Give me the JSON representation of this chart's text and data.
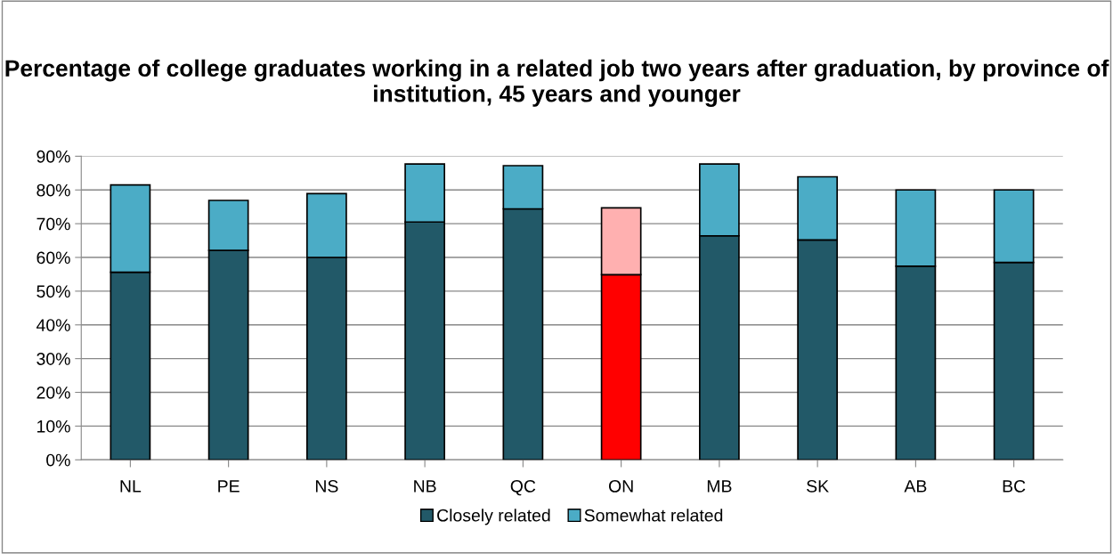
{
  "chart_data": {
    "type": "bar",
    "title": "Percentage of college graduates working in a related job two years after graduation, by province of institution, 45 years and younger",
    "categories": [
      "NL",
      "PE",
      "NS",
      "NB",
      "QC",
      "ON",
      "MB",
      "SK",
      "AB",
      "BC"
    ],
    "stacked": true,
    "series": [
      {
        "name": "Closely related",
        "color": "#225968",
        "colors": [
          "#225968",
          "#225968",
          "#225968",
          "#225968",
          "#225968",
          "#ff0000",
          "#225968",
          "#225968",
          "#225968",
          "#225968"
        ],
        "values": [
          55.6,
          62.1,
          60.0,
          70.5,
          74.4,
          54.9,
          66.4,
          65.2,
          57.4,
          58.5
        ]
      },
      {
        "name": "Somewhat related",
        "color": "#4bacc6",
        "colors": [
          "#4bacc6",
          "#4bacc6",
          "#4bacc6",
          "#4bacc6",
          "#4bacc6",
          "#ffb0b0",
          "#4bacc6",
          "#4bacc6",
          "#4bacc6",
          "#4bacc6"
        ],
        "values": [
          25.9,
          14.8,
          18.9,
          17.2,
          12.8,
          19.8,
          21.3,
          18.7,
          22.6,
          21.5
        ]
      }
    ],
    "ylim": [
      0,
      90
    ],
    "yticks": [
      {
        "value": 0,
        "label": "0%"
      },
      {
        "value": 10,
        "label": "10%"
      },
      {
        "value": 20,
        "label": "20%"
      },
      {
        "value": 30,
        "label": "30%"
      },
      {
        "value": 40,
        "label": "40%"
      },
      {
        "value": 50,
        "label": "50%"
      },
      {
        "value": 60,
        "label": "60%"
      },
      {
        "value": 70,
        "label": "70%"
      },
      {
        "value": 80,
        "label": "80%"
      },
      {
        "value": 90,
        "label": "90%"
      }
    ],
    "grid": "y",
    "legend": "bottom"
  }
}
